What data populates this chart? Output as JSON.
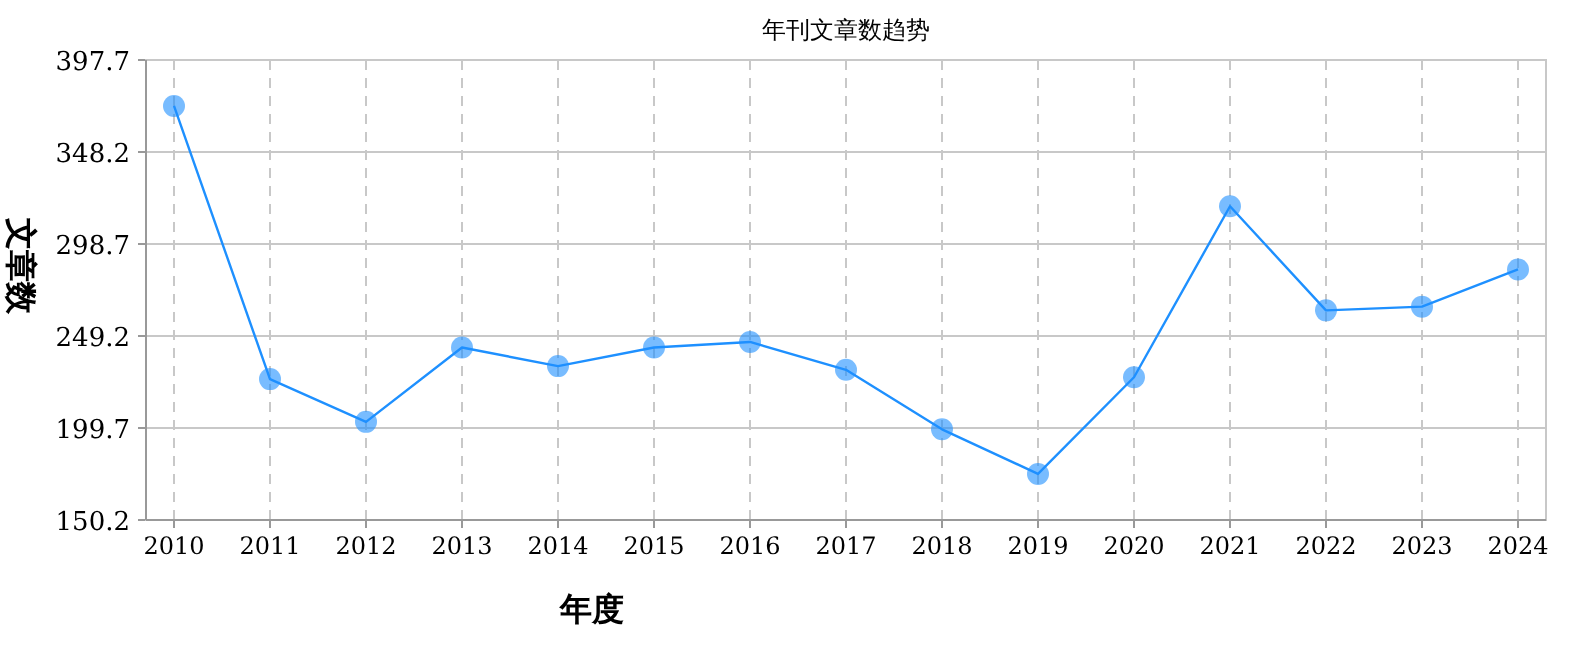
{
  "chart_data": {
    "type": "line",
    "title": "年刊文章数趋势",
    "xlabel": "年度",
    "ylabel": "文章数",
    "categories": [
      "2010",
      "2011",
      "2012",
      "2013",
      "2014",
      "2015",
      "2016",
      "2017",
      "2018",
      "2019",
      "2020",
      "2021",
      "2022",
      "2023",
      "2024"
    ],
    "series": [
      {
        "color": "#1e90ff",
        "values": [
          373,
          226,
          203,
          243,
          233,
          243,
          246,
          231,
          199,
          175,
          227,
          319,
          263,
          265,
          285
        ]
      }
    ],
    "ylim": [
      150.2,
      397.7
    ],
    "yticks": [
      150.2,
      199.7,
      249.2,
      298.7,
      348.2,
      397.7
    ],
    "grid": true,
    "marker": "circle",
    "line_style": "solid"
  }
}
